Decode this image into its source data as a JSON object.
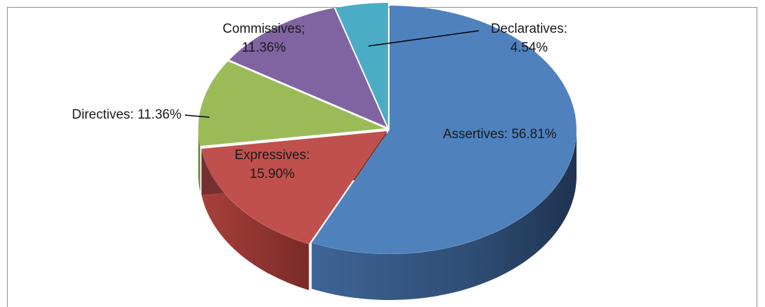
{
  "chart_data": {
    "type": "pie",
    "style": "3d-exploded-pie",
    "title": "",
    "slices": [
      {
        "name": "Assertives",
        "value": 56.81,
        "label_lines": [
          "Assertives: 56.81%"
        ],
        "color": "#4F81BD"
      },
      {
        "name": "Expressives",
        "value": 15.9,
        "label_lines": [
          "Expressives:",
          "15.90%"
        ],
        "color": "#C0504D"
      },
      {
        "name": "Directives",
        "value": 11.36,
        "label_lines": [
          "Directives: 11.36%"
        ],
        "color": "#9BBB59"
      },
      {
        "name": "Commissives",
        "value": 11.36,
        "label_lines": [
          "Commissives;",
          "11.36%"
        ],
        "color": "#8064A2"
      },
      {
        "name": "Declaratives",
        "value": 4.54,
        "label_lines": [
          "Declaratives:",
          "4.54%"
        ],
        "color": "#4BACC6"
      }
    ],
    "legend": "none"
  }
}
